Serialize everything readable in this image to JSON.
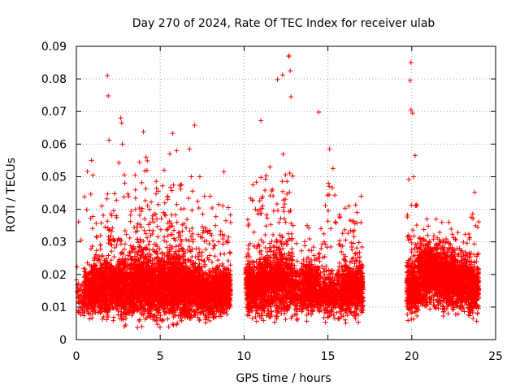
{
  "chart_data": {
    "type": "scatter",
    "title": "Day 270 of 2024, Rate Of TEC Index for receiver ulab",
    "xlabel": "GPS time / hours",
    "ylabel": "ROTI / TECUs",
    "xlim": [
      0,
      25
    ],
    "ylim": [
      0,
      0.09
    ],
    "x_ticks": [
      "0",
      "5",
      "10",
      "15",
      "20",
      "25"
    ],
    "y_ticks": [
      "0",
      "0.01",
      "0.02",
      "0.03",
      "0.04",
      "0.05",
      "0.06",
      "0.07",
      "0.08",
      "0.09"
    ],
    "grid": true,
    "legend": "none",
    "marker": "plus",
    "color": "#ff0000",
    "data_gaps_hours": [
      [
        9.2,
        10.1
      ],
      [
        17.1,
        19.7
      ]
    ],
    "notable_points": [
      {
        "x": 1.85,
        "y": 0.081
      },
      {
        "x": 1.9,
        "y": 0.0748
      },
      {
        "x": 1.95,
        "y": 0.0612
      },
      {
        "x": 2.65,
        "y": 0.068
      },
      {
        "x": 2.7,
        "y": 0.0665
      },
      {
        "x": 4.0,
        "y": 0.0638
      },
      {
        "x": 5.75,
        "y": 0.0633
      },
      {
        "x": 6.75,
        "y": 0.0585
      },
      {
        "x": 7.05,
        "y": 0.0658
      },
      {
        "x": 8.8,
        "y": 0.0515
      },
      {
        "x": 11.0,
        "y": 0.0672
      },
      {
        "x": 12.0,
        "y": 0.0798
      },
      {
        "x": 12.3,
        "y": 0.0812
      },
      {
        "x": 12.65,
        "y": 0.087
      },
      {
        "x": 12.7,
        "y": 0.087
      },
      {
        "x": 12.75,
        "y": 0.0825
      },
      {
        "x": 12.8,
        "y": 0.0745
      },
      {
        "x": 14.45,
        "y": 0.0698
      },
      {
        "x": 15.1,
        "y": 0.0585
      },
      {
        "x": 15.3,
        "y": 0.0525
      },
      {
        "x": 19.95,
        "y": 0.085
      },
      {
        "x": 19.9,
        "y": 0.0795
      },
      {
        "x": 19.95,
        "y": 0.0705
      },
      {
        "x": 20.05,
        "y": 0.0695
      },
      {
        "x": 20.2,
        "y": 0.0565
      },
      {
        "x": 23.75,
        "y": 0.0452
      }
    ],
    "density_profile": [
      {
        "x0": 0.0,
        "x1": 0.45,
        "median": 0.012,
        "spread": 0.005,
        "peak": 0.041,
        "density": 0.5
      },
      {
        "x0": 0.45,
        "x1": 1.0,
        "median": 0.015,
        "spread": 0.006,
        "peak": 0.055,
        "density": 2.2
      },
      {
        "x0": 1.0,
        "x1": 1.8,
        "median": 0.016,
        "spread": 0.007,
        "peak": 0.041,
        "density": 2.6
      },
      {
        "x0": 1.8,
        "x1": 2.5,
        "median": 0.016,
        "spread": 0.007,
        "peak": 0.05,
        "density": 2.6
      },
      {
        "x0": 2.5,
        "x1": 3.4,
        "median": 0.016,
        "spread": 0.008,
        "peak": 0.06,
        "density": 2.6
      },
      {
        "x0": 3.4,
        "x1": 4.4,
        "median": 0.017,
        "spread": 0.009,
        "peak": 0.056,
        "density": 3.0
      },
      {
        "x0": 4.4,
        "x1": 5.4,
        "median": 0.016,
        "spread": 0.008,
        "peak": 0.052,
        "density": 3.0
      },
      {
        "x0": 5.4,
        "x1": 6.4,
        "median": 0.017,
        "spread": 0.009,
        "peak": 0.058,
        "density": 3.0
      },
      {
        "x0": 6.4,
        "x1": 7.4,
        "median": 0.015,
        "spread": 0.007,
        "peak": 0.05,
        "density": 2.8
      },
      {
        "x0": 7.4,
        "x1": 8.3,
        "median": 0.014,
        "spread": 0.006,
        "peak": 0.044,
        "density": 2.6
      },
      {
        "x0": 8.3,
        "x1": 9.2,
        "median": 0.015,
        "spread": 0.006,
        "peak": 0.045,
        "density": 2.6
      },
      {
        "x0": 10.1,
        "x1": 10.9,
        "median": 0.016,
        "spread": 0.007,
        "peak": 0.049,
        "density": 2.4
      },
      {
        "x0": 10.9,
        "x1": 11.8,
        "median": 0.017,
        "spread": 0.008,
        "peak": 0.054,
        "density": 2.4
      },
      {
        "x0": 11.8,
        "x1": 12.9,
        "median": 0.018,
        "spread": 0.009,
        "peak": 0.06,
        "density": 2.4
      },
      {
        "x0": 12.9,
        "x1": 13.5,
        "median": 0.015,
        "spread": 0.006,
        "peak": 0.038,
        "density": 1.4
      },
      {
        "x0": 13.5,
        "x1": 14.5,
        "median": 0.016,
        "spread": 0.007,
        "peak": 0.035,
        "density": 2.4
      },
      {
        "x0": 14.5,
        "x1": 15.2,
        "median": 0.014,
        "spread": 0.006,
        "peak": 0.048,
        "density": 1.6
      },
      {
        "x0": 15.2,
        "x1": 15.8,
        "median": 0.014,
        "spread": 0.006,
        "peak": 0.052,
        "density": 1.4
      },
      {
        "x0": 15.8,
        "x1": 16.4,
        "median": 0.015,
        "spread": 0.007,
        "peak": 0.045,
        "density": 2.4
      },
      {
        "x0": 16.4,
        "x1": 17.1,
        "median": 0.016,
        "spread": 0.007,
        "peak": 0.044,
        "density": 2.4
      },
      {
        "x0": 19.7,
        "x1": 20.4,
        "median": 0.016,
        "spread": 0.007,
        "peak": 0.05,
        "density": 2.4
      },
      {
        "x0": 20.4,
        "x1": 21.5,
        "median": 0.02,
        "spread": 0.008,
        "peak": 0.037,
        "density": 2.8
      },
      {
        "x0": 21.5,
        "x1": 22.6,
        "median": 0.019,
        "spread": 0.008,
        "peak": 0.036,
        "density": 2.8
      },
      {
        "x0": 22.6,
        "x1": 23.3,
        "median": 0.017,
        "spread": 0.007,
        "peak": 0.035,
        "density": 2.6
      },
      {
        "x0": 23.3,
        "x1": 24.0,
        "median": 0.016,
        "spread": 0.007,
        "peak": 0.042,
        "density": 2.6
      }
    ]
  }
}
